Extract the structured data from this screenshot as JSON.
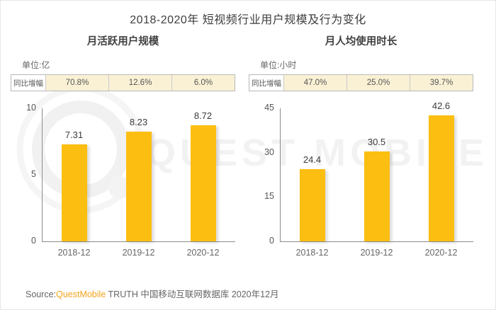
{
  "header": {
    "title": "2018-2020年 短视频行业用户规模及行为变化"
  },
  "watermark": {
    "text": "QUEST MOBILE",
    "logo": "questmobile-ring-logo",
    "color": "#f2f2f2"
  },
  "footer": {
    "source_prefix": "Source:",
    "brand": "QuestMobile",
    "source_suffix": " TRUTH 中国移动互联网数据库 2020年12月",
    "brand_color": "#F5A31D"
  },
  "colors": {
    "bar": "#FCBE11",
    "growth_cell_bg": "#FAF1D5",
    "axis": "#8C8C8C"
  },
  "chart_data": [
    {
      "type": "bar",
      "title": "月活跃用户规模",
      "unit_label": "单位:亿",
      "categories": [
        "2018-12",
        "2019-12",
        "2020-12"
      ],
      "values": [
        7.31,
        8.23,
        8.72
      ],
      "value_labels": [
        "7.31",
        "8.23",
        "8.72"
      ],
      "yoy_growth": {
        "label": "同比增幅",
        "values": [
          "70.8%",
          "12.6%",
          "6.0%"
        ]
      },
      "ylim": [
        0,
        10
      ],
      "yticks": [
        0,
        5,
        10
      ],
      "grid": false,
      "legend": "none"
    },
    {
      "type": "bar",
      "title": "月人均使用时长",
      "unit_label": "单位:小时",
      "categories": [
        "2018-12",
        "2019-12",
        "2020-12"
      ],
      "values": [
        24.4,
        30.5,
        42.6
      ],
      "value_labels": [
        "24.4",
        "30.5",
        "42.6"
      ],
      "yoy_growth": {
        "label": "同比增幅",
        "values": [
          "47.0%",
          "25.0%",
          "39.7%"
        ]
      },
      "ylim": [
        0,
        45
      ],
      "yticks": [
        0,
        15,
        30,
        45
      ],
      "grid": false,
      "legend": "none"
    }
  ]
}
